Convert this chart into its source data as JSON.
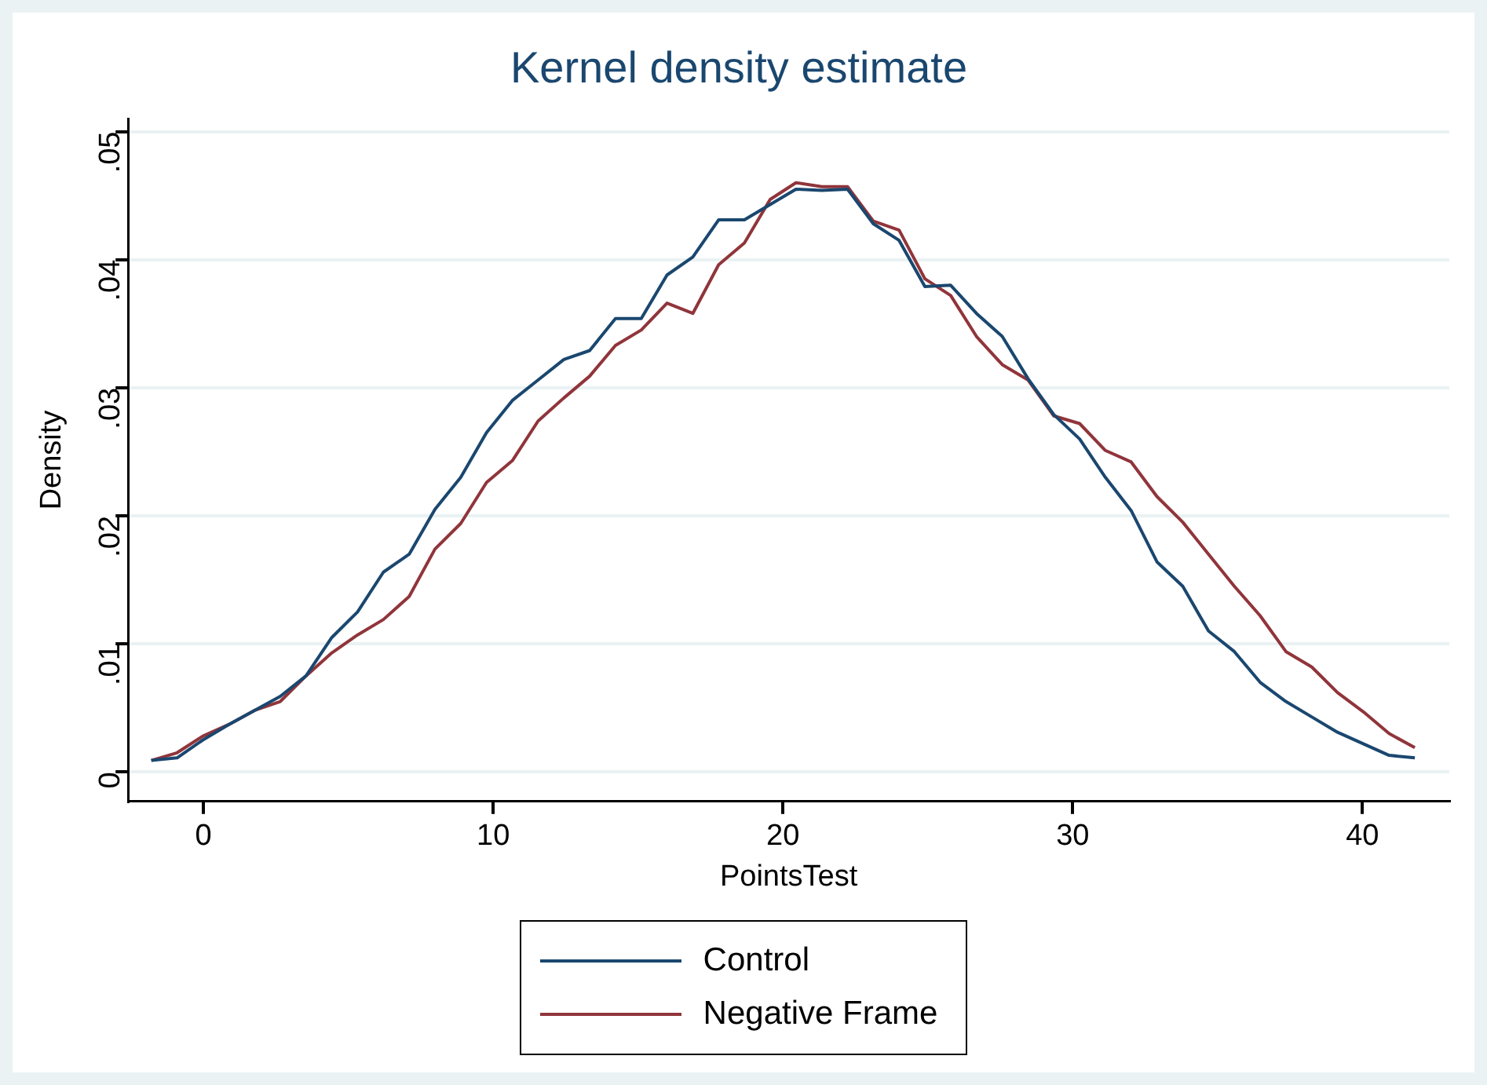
{
  "chart_data": {
    "type": "line",
    "title": "Kernel density estimate",
    "xlabel": "PointsTest",
    "ylabel": "Density",
    "x": [
      -1.8,
      -0.91,
      -0.02,
      0.87,
      1.76,
      2.65,
      3.54,
      4.43,
      5.32,
      6.21,
      7.1,
      7.99,
      8.88,
      9.77,
      10.66,
      11.55,
      12.44,
      13.33,
      14.22,
      15.11,
      16,
      16.89,
      17.78,
      18.67,
      19.56,
      20.45,
      21.34,
      22.23,
      23.12,
      24.01,
      24.9,
      25.79,
      26.68,
      27.57,
      28.46,
      29.35,
      30.24,
      31.13,
      32.02,
      32.91,
      33.8,
      34.69,
      35.58,
      36.47,
      37.36,
      38.25,
      39.14,
      40.03,
      40.92,
      41.81
    ],
    "series": [
      {
        "name": "Control",
        "color": "#1a476f",
        "values": [
          0.0009,
          0.0011,
          0.0025,
          0.0037,
          0.0048,
          0.0059,
          0.0075,
          0.0105,
          0.0125,
          0.0156,
          0.017,
          0.0205,
          0.023,
          0.0265,
          0.029,
          0.0306,
          0.0322,
          0.0329,
          0.0354,
          0.0354,
          0.0388,
          0.0402,
          0.0431,
          0.0431,
          0.0443,
          0.0455,
          0.0454,
          0.0455,
          0.0428,
          0.0415,
          0.0379,
          0.038,
          0.0358,
          0.034,
          0.0307,
          0.0279,
          0.026,
          0.023,
          0.0204,
          0.0164,
          0.0145,
          0.011,
          0.0094,
          0.007,
          0.0055,
          0.0043,
          0.0031,
          0.0022,
          0.0013,
          0.0011
        ]
      },
      {
        "name": "Negative Frame",
        "color": "#90353b",
        "values": [
          0.0009,
          0.0015,
          0.0028,
          0.0037,
          0.0048,
          0.0055,
          0.0075,
          0.0093,
          0.0107,
          0.0119,
          0.0137,
          0.0174,
          0.0194,
          0.0226,
          0.0243,
          0.0274,
          0.0292,
          0.0309,
          0.0333,
          0.0345,
          0.0366,
          0.0358,
          0.0396,
          0.0413,
          0.0447,
          0.046,
          0.0457,
          0.0457,
          0.043,
          0.0423,
          0.0385,
          0.0372,
          0.034,
          0.0318,
          0.0306,
          0.0278,
          0.0272,
          0.0251,
          0.0242,
          0.0215,
          0.0195,
          0.017,
          0.0145,
          0.0122,
          0.0094,
          0.0082,
          0.0062,
          0.0047,
          0.003,
          0.0019
        ]
      }
    ],
    "xlim": [
      -2.6,
      43
    ],
    "xticks": [
      0,
      10,
      20,
      30,
      40
    ],
    "ylim": [
      -0.0023,
      0.051
    ],
    "yticks": [
      0,
      {
        "value": 0.01,
        "label": ".01"
      },
      {
        "value": 0.02,
        "label": ".02"
      },
      {
        "value": 0.03,
        "label": ".03"
      },
      {
        "value": 0.04,
        "label": ".04"
      },
      {
        "value": 0.05,
        "label": ".05"
      }
    ],
    "grid": "y",
    "legend": "bottom",
    "marker": "none",
    "line_style": "solid"
  }
}
